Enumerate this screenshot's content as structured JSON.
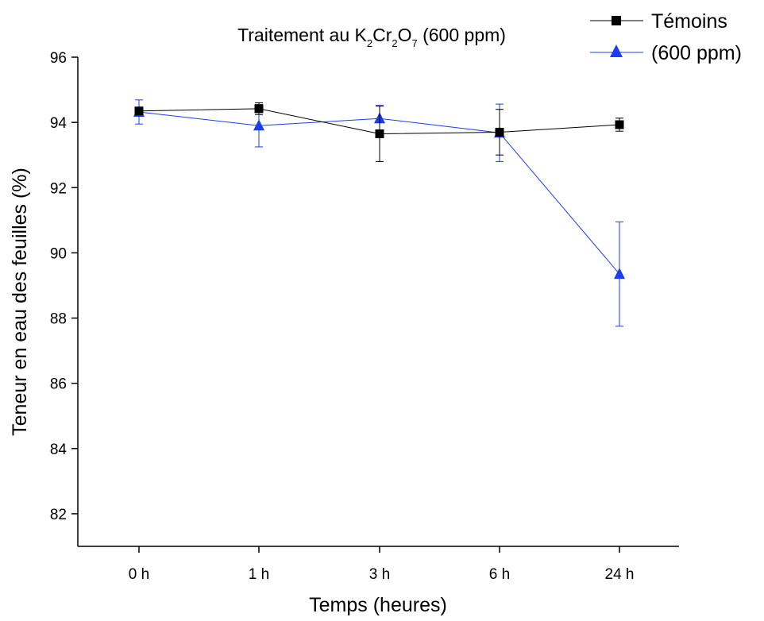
{
  "chart_data": {
    "type": "line",
    "title": {
      "prefix": "Traitement au K",
      "sub1": "2",
      "mid1": "Cr",
      "sub2": "2",
      "mid2": "O",
      "sub3": "7",
      "suffix": " (600 ppm)"
    },
    "xlabel": "Temps (heures)",
    "ylabel": "Teneur en eau des feuilles (%)",
    "categories": [
      "0 h",
      "1 h",
      "3 h",
      "6 h",
      "24 h"
    ],
    "ylim": [
      81,
      96
    ],
    "yticks": [
      82,
      84,
      86,
      88,
      90,
      92,
      94,
      96
    ],
    "legend_position": "top-right",
    "series": [
      {
        "name": "Témoins",
        "color": "#000000",
        "marker": "square",
        "values": [
          94.35,
          94.42,
          93.65,
          93.7,
          93.93
        ],
        "errors": [
          0.1,
          0.18,
          0.85,
          0.7,
          0.2
        ]
      },
      {
        "name": "(600 ppm)",
        "color": "#1a3cf5",
        "marker": "triangle",
        "values": [
          94.32,
          93.9,
          94.12,
          93.68,
          89.35
        ],
        "errors": [
          0.37,
          0.65,
          0.4,
          0.88,
          1.6
        ]
      }
    ]
  }
}
